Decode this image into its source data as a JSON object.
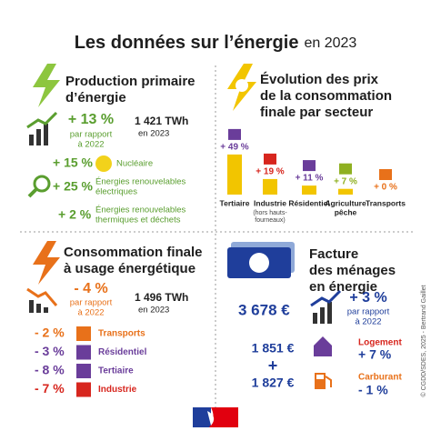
{
  "title": "Les données sur l’énergie",
  "title_suffix": "en 2023",
  "production": {
    "title_lines": [
      "Production primaire",
      "d’énergie"
    ],
    "change": "+ 13 %",
    "change_note": [
      "par rapport",
      "à 2022"
    ],
    "total": "1 421 TWh",
    "total_year": "en 2023",
    "items": [
      {
        "value": "+ 15 %",
        "label_lines": [
          "Nucléaire"
        ]
      },
      {
        "value": "+ 25 %",
        "label_lines": [
          "Énergies renouvelables",
          "électriques"
        ]
      },
      {
        "value": "+ 2 %",
        "label_lines": [
          "Énergies renouvelables",
          "thermiques et déchets"
        ]
      }
    ]
  },
  "prices": {
    "title_lines": [
      "Évolution des prix",
      "de la consommation",
      "finale par secteur"
    ],
    "sectors": [
      {
        "name_lines": [
          "Tertiaire"
        ],
        "value": 49,
        "value_label": "+ 49 %",
        "color": "#6a3d9a"
      },
      {
        "name_lines": [
          "Industrie"
        ],
        "note_lines": [
          "(hors hauts-",
          "fourneaux)"
        ],
        "value": 19,
        "value_label": "+ 19 %",
        "color": "#d7261e"
      },
      {
        "name_lines": [
          "Résidentiel"
        ],
        "value": 11,
        "value_label": "+ 11 %",
        "color": "#6a3d9a"
      },
      {
        "name_lines": [
          "Agriculture",
          "pêche"
        ],
        "value": 7,
        "value_label": "+ 7 %",
        "color": "#8fb021"
      },
      {
        "name_lines": [
          "Transports"
        ],
        "value": 0,
        "value_label": "+ 0 %",
        "color": "#e8711a"
      }
    ]
  },
  "consumption": {
    "title_lines": [
      "Consommation finale",
      "à usage énergétique"
    ],
    "change": "- 4 %",
    "change_note": [
      "par rapport",
      "à 2022"
    ],
    "total": "1 496 TWh",
    "total_year": "en 2023",
    "items": [
      {
        "value": "- 2 %",
        "label": "Transports",
        "color": "#e8711a"
      },
      {
        "value": "- 3 %",
        "label": "Résidentiel",
        "color": "#6a3d9a"
      },
      {
        "value": "- 8 %",
        "label": "Tertiaire",
        "color": "#6a3d9a"
      },
      {
        "value": "- 7 %",
        "label": "Industrie",
        "color": "#d7261e"
      }
    ]
  },
  "bill": {
    "title_lines": [
      "Facture",
      "des ménages",
      "en énergie"
    ],
    "total": "3 678 €",
    "change": "+ 3 %",
    "change_note": [
      "par rapport",
      "à 2022"
    ],
    "items": [
      {
        "amount": "1 851 €",
        "label": "Logement",
        "change": "+ 7 %"
      },
      {
        "amount": "1 827 €",
        "label": "Carburant",
        "change": "- 1 %"
      }
    ],
    "plus": "+"
  },
  "credit": "© CGDD/SDES, 2025 - Bertrand Gaillet"
}
